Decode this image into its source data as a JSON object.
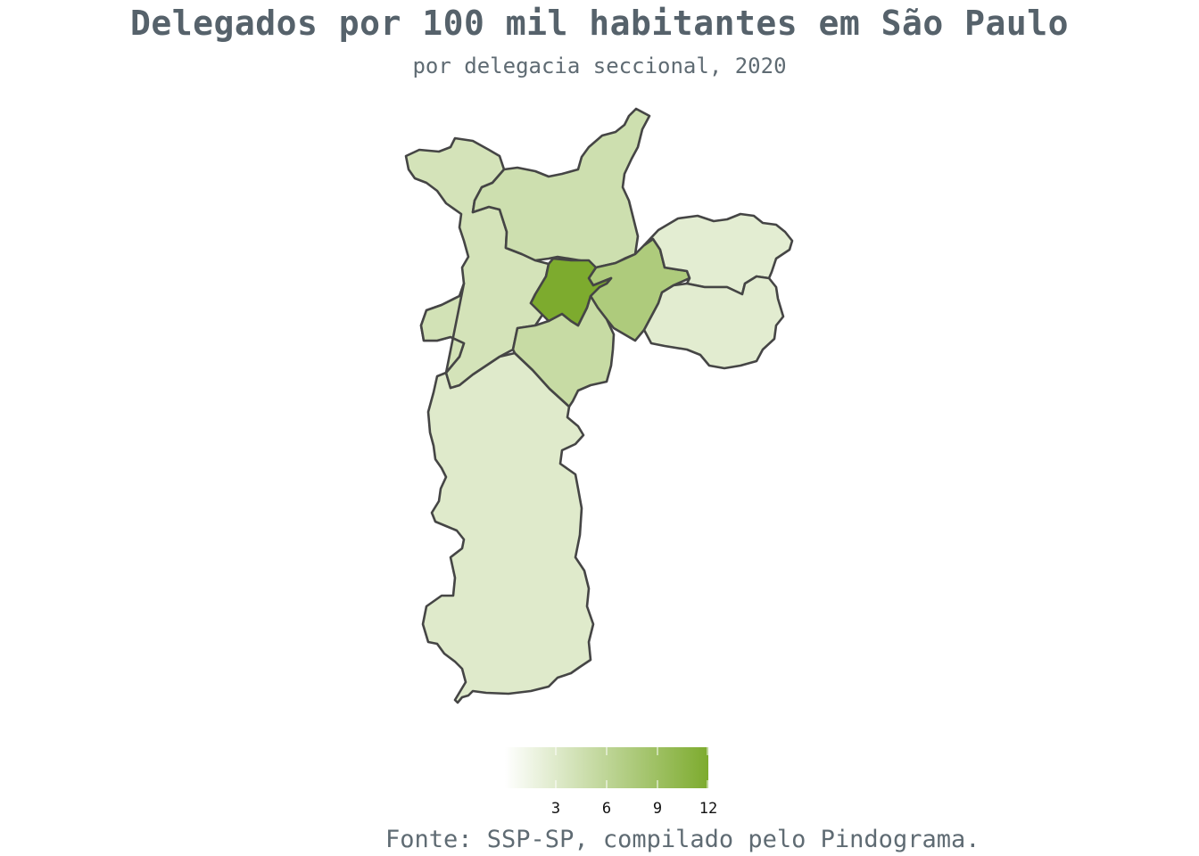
{
  "title": "Delegados por 100 mil habitantes em São Paulo",
  "subtitle": "por delegacia seccional, 2020",
  "caption": "Fonte: SSP-SP, compilado pelo Pindograma.",
  "colors": {
    "scale_low": "#ffffff",
    "scale_high": "#7dab2e",
    "border": "#454545",
    "title": "#56626b"
  },
  "legend": {
    "min": 0,
    "max": 12,
    "ticks": [
      "3",
      "6",
      "9",
      "12"
    ],
    "tick_values": [
      3,
      6,
      9,
      12
    ]
  },
  "regions": [
    {
      "id": "northwest",
      "value": 4.0
    },
    {
      "id": "north",
      "value": 4.6
    },
    {
      "id": "west",
      "value": 4.2
    },
    {
      "id": "center",
      "value": 12.0
    },
    {
      "id": "east-central",
      "value": 7.5
    },
    {
      "id": "far-east-north",
      "value": 2.6
    },
    {
      "id": "far-east-south",
      "value": 2.7
    },
    {
      "id": "south-central",
      "value": 5.2
    },
    {
      "id": "south",
      "value": 3.0
    }
  ]
}
